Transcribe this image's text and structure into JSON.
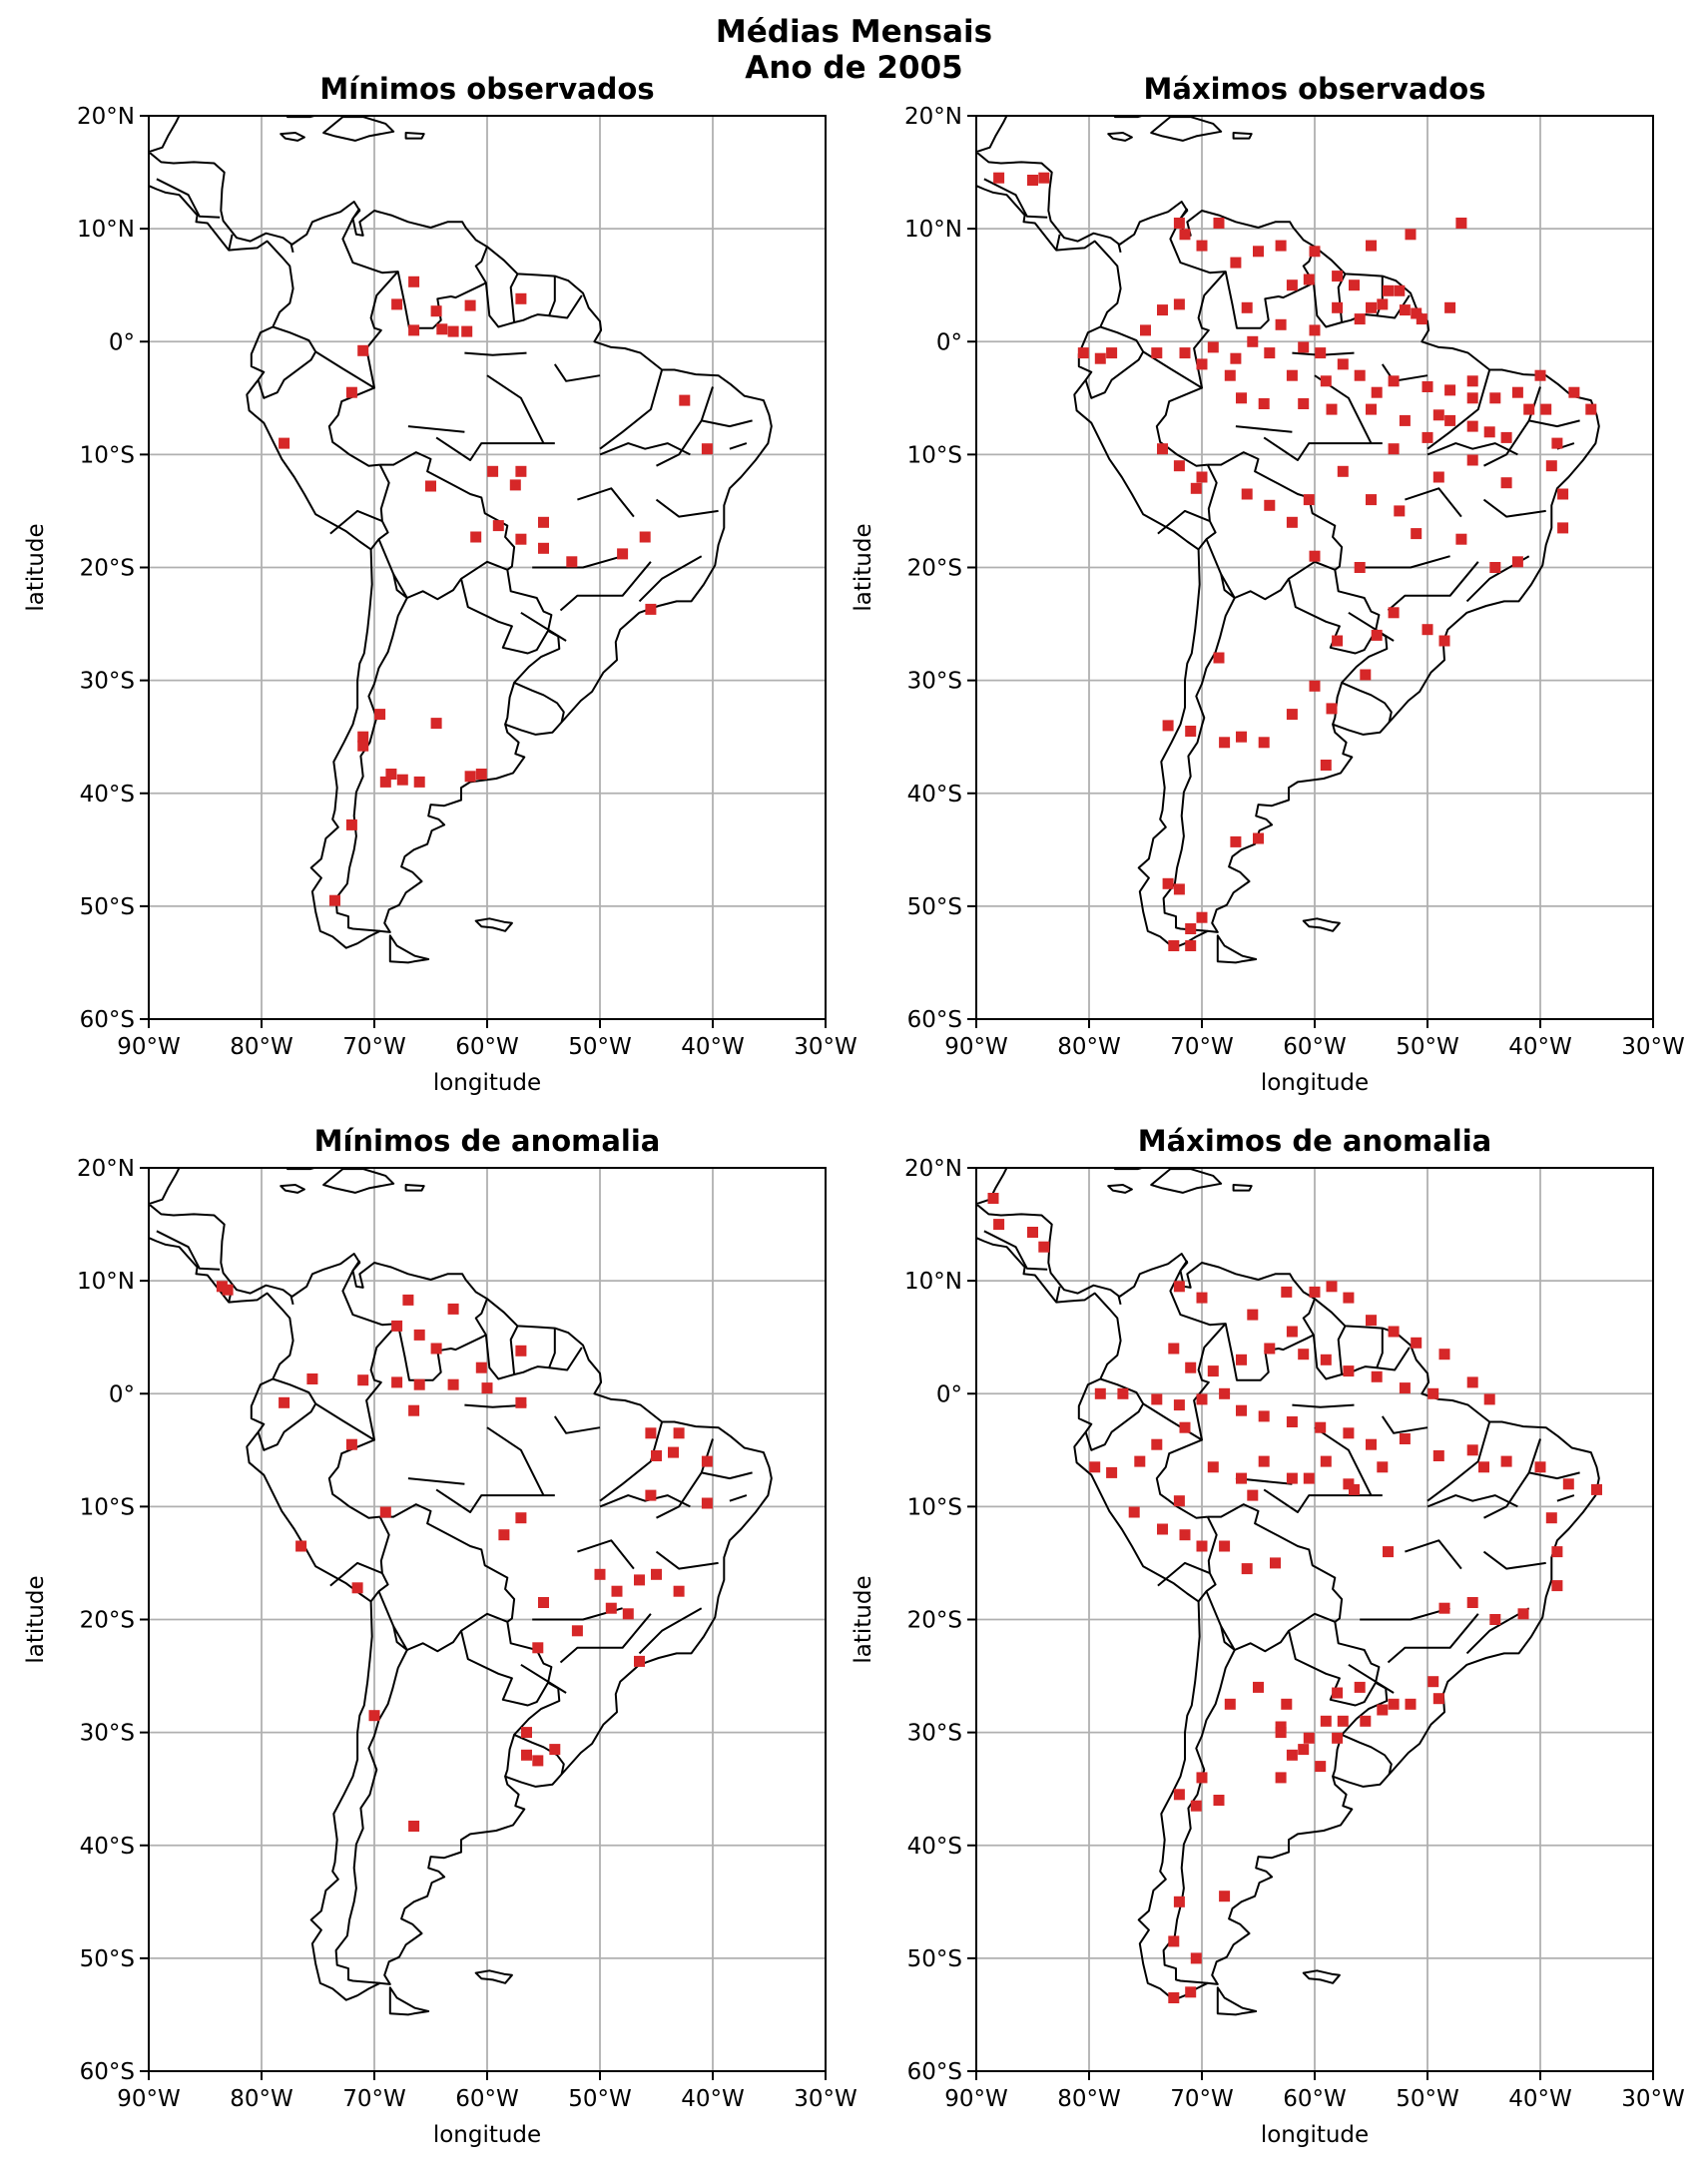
{
  "figure": {
    "title_line1": "Médias Mensais",
    "title_line2": "Ano de 2005"
  },
  "style": {
    "marker_color": "#d62728",
    "grid_color": "#b0b0b0",
    "coast_color": "#000000"
  },
  "axes_common": {
    "xlabel": "longitude",
    "ylabel": "latitude",
    "xlim": [
      -90,
      -30
    ],
    "ylim": [
      -60,
      20
    ],
    "xticks": [
      -90,
      -80,
      -70,
      -60,
      -50,
      -40,
      -30
    ],
    "yticks": [
      20,
      10,
      0,
      -10,
      -20,
      -30,
      -40,
      -50,
      -60
    ],
    "xtick_labels": [
      "90°W",
      "80°W",
      "70°W",
      "60°W",
      "50°W",
      "40°W",
      "30°W"
    ],
    "ytick_labels": [
      "20°N",
      "10°N",
      "0°",
      "10°S",
      "20°S",
      "30°S",
      "40°S",
      "50°S",
      "60°S"
    ],
    "grid": true
  },
  "chart_data": [
    {
      "type": "scatter",
      "title": "Mínimos observados",
      "points": [
        [
          -66.5,
          5.3
        ],
        [
          -68,
          3.3
        ],
        [
          -66.5,
          1
        ],
        [
          -64,
          1.1
        ],
        [
          -63,
          0.9
        ],
        [
          -61.8,
          0.9
        ],
        [
          -61.5,
          3.2
        ],
        [
          -57,
          3.8
        ],
        [
          -64.5,
          2.7
        ],
        [
          -71,
          -0.8
        ],
        [
          -72,
          -4.5
        ],
        [
          -78,
          -9
        ],
        [
          -42.5,
          -5.2
        ],
        [
          -57,
          -11.5
        ],
        [
          -57.5,
          -12.7
        ],
        [
          -59.5,
          -11.5
        ],
        [
          -65,
          -12.8
        ],
        [
          -55,
          -16
        ],
        [
          -61,
          -17.3
        ],
        [
          -59,
          -16.3
        ],
        [
          -57,
          -17.5
        ],
        [
          -55,
          -18.3
        ],
        [
          -52.5,
          -19.5
        ],
        [
          -48,
          -18.8
        ],
        [
          -46,
          -17.3
        ],
        [
          -45.5,
          -23.7
        ],
        [
          -40.5,
          -9.5
        ],
        [
          -69.5,
          -33
        ],
        [
          -71,
          -35
        ],
        [
          -71,
          -35.8
        ],
        [
          -64.5,
          -33.8
        ],
        [
          -68.5,
          -38.3
        ],
        [
          -67.5,
          -38.8
        ],
        [
          -69,
          -39
        ],
        [
          -66,
          -39
        ],
        [
          -60.5,
          -38.3
        ],
        [
          -72,
          -42.8
        ],
        [
          -73.5,
          -49.5
        ],
        [
          -61.5,
          -38.5
        ]
      ]
    },
    {
      "type": "scatter",
      "title": "Máximos observados",
      "points": [
        [
          -88,
          14.5
        ],
        [
          -85,
          14.3
        ],
        [
          -84,
          14.5
        ],
        [
          -72,
          10.5
        ],
        [
          -71.5,
          9.5
        ],
        [
          -70,
          8.5
        ],
        [
          -67,
          7
        ],
        [
          -63,
          8.5
        ],
        [
          -60,
          8
        ],
        [
          -55,
          8.5
        ],
        [
          -51.5,
          9.5
        ],
        [
          -47,
          10.5
        ],
        [
          -60.5,
          5.5
        ],
        [
          -58,
          5.8
        ],
        [
          -56.5,
          5
        ],
        [
          -55,
          3
        ],
        [
          -53.5,
          4.5
        ],
        [
          -52.5,
          4.5
        ],
        [
          -51,
          2.5
        ],
        [
          -50.5,
          2
        ],
        [
          -48,
          3
        ],
        [
          -73.5,
          2.8
        ],
        [
          -72,
          3.3
        ],
        [
          -75,
          1
        ],
        [
          -79,
          -1.5
        ],
        [
          -80.5,
          -1
        ],
        [
          -78,
          -1
        ],
        [
          -65.5,
          0
        ],
        [
          -63,
          1.5
        ],
        [
          -60,
          1
        ],
        [
          -58,
          3
        ],
        [
          -56,
          2
        ],
        [
          -54,
          3.3
        ],
        [
          -52,
          2.8
        ],
        [
          -61,
          -0.5
        ],
        [
          -64,
          -1
        ],
        [
          -67,
          -1.5
        ],
        [
          -70,
          -2
        ],
        [
          -71.5,
          -1
        ],
        [
          -74,
          -1
        ],
        [
          -62,
          -3
        ],
        [
          -59,
          -3.5
        ],
        [
          -56,
          -3
        ],
        [
          -53,
          -3.5
        ],
        [
          -50,
          -4
        ],
        [
          -48,
          -4.3
        ],
        [
          -46,
          -5
        ],
        [
          -44,
          -5
        ],
        [
          -42,
          -4.5
        ],
        [
          -40,
          -3
        ],
        [
          -39.5,
          -6
        ],
        [
          -37,
          -4.5
        ],
        [
          -66.5,
          -5
        ],
        [
          -64.5,
          -5.5
        ],
        [
          -61,
          -5.5
        ],
        [
          -58.5,
          -6
        ],
        [
          -55,
          -6
        ],
        [
          -52,
          -7
        ],
        [
          -49,
          -6.5
        ],
        [
          -46,
          -7.5
        ],
        [
          -43,
          -8.5
        ],
        [
          -73.5,
          -9.5
        ],
        [
          -72,
          -11
        ],
        [
          -70,
          -12
        ],
        [
          -70.5,
          -13
        ],
        [
          -66,
          -13.5
        ],
        [
          -64,
          -14.5
        ],
        [
          -60.5,
          -14
        ],
        [
          -57.5,
          -11.5
        ],
        [
          -55,
          -14
        ],
        [
          -52.5,
          -15
        ],
        [
          -49,
          -12
        ],
        [
          -46,
          -10.5
        ],
        [
          -43,
          -12.5
        ],
        [
          -39,
          -11
        ],
        [
          -38,
          -13.5
        ],
        [
          -62,
          -16
        ],
        [
          -60,
          -19
        ],
        [
          -56,
          -20
        ],
        [
          -51,
          -17
        ],
        [
          -47,
          -17.5
        ],
        [
          -44,
          -20
        ],
        [
          -42,
          -19.5
        ],
        [
          -38,
          -16.5
        ],
        [
          -58,
          -26.5
        ],
        [
          -54.5,
          -26
        ],
        [
          -53,
          -24
        ],
        [
          -50,
          -25.5
        ],
        [
          -48.5,
          -26.5
        ],
        [
          -73,
          -34
        ],
        [
          -71,
          -34.5
        ],
        [
          -68,
          -35.5
        ],
        [
          -66.5,
          -35
        ],
        [
          -64.5,
          -35.5
        ],
        [
          -62,
          -33
        ],
        [
          -59,
          -37.5
        ],
        [
          -67,
          -44.3
        ],
        [
          -65,
          -44
        ],
        [
          -73,
          -48
        ],
        [
          -72,
          -48.5
        ],
        [
          -70,
          -51
        ],
        [
          -71,
          -52
        ],
        [
          -72.5,
          -53.5
        ],
        [
          -71,
          -53.5
        ],
        [
          -68.5,
          -28
        ],
        [
          -58.5,
          -32.5
        ],
        [
          -55.5,
          -29.5
        ],
        [
          -60,
          -30.5
        ],
        [
          -53,
          -9.5
        ],
        [
          -48,
          -7
        ],
        [
          -50,
          -8.5
        ],
        [
          -46,
          -3.5
        ],
        [
          -44.5,
          -8
        ],
        [
          -41,
          -6
        ],
        [
          -38.5,
          -9
        ],
        [
          -35.5,
          -6
        ],
        [
          -54.5,
          -4.5
        ],
        [
          -57.5,
          -2
        ],
        [
          -59.5,
          -1
        ],
        [
          -67.5,
          -3
        ],
        [
          -69,
          -0.5
        ],
        [
          -66,
          3
        ],
        [
          -62,
          5
        ],
        [
          -65,
          8
        ],
        [
          -68.5,
          10.5
        ]
      ]
    },
    {
      "type": "scatter",
      "title": "Mínimos de anomalia",
      "points": [
        [
          -83.5,
          9.5
        ],
        [
          -83,
          9.2
        ],
        [
          -67,
          8.3
        ],
        [
          -63,
          7.5
        ],
        [
          -68,
          6
        ],
        [
          -66,
          5.2
        ],
        [
          -64.5,
          4
        ],
        [
          -57,
          3.8
        ],
        [
          -71,
          1.2
        ],
        [
          -68,
          1
        ],
        [
          -66,
          0.8
        ],
        [
          -63,
          0.8
        ],
        [
          -60.5,
          2.3
        ],
        [
          -78,
          -0.8
        ],
        [
          -75.5,
          1.3
        ],
        [
          -72,
          -4.5
        ],
        [
          -66.5,
          -1.5
        ],
        [
          -60,
          0.5
        ],
        [
          -57,
          -0.8
        ],
        [
          -45.5,
          -3.5
        ],
        [
          -43,
          -3.5
        ],
        [
          -45,
          -5.5
        ],
        [
          -43.5,
          -5.2
        ],
        [
          -40.5,
          -6
        ],
        [
          -40.5,
          -9.7
        ],
        [
          -45.5,
          -9
        ],
        [
          -57,
          -11
        ],
        [
          -58.5,
          -12.5
        ],
        [
          -69,
          -10.5
        ],
        [
          -76.5,
          -13.5
        ],
        [
          -71.5,
          -17.2
        ],
        [
          -50,
          -16
        ],
        [
          -48.5,
          -17.5
        ],
        [
          -46.5,
          -16.5
        ],
        [
          -45,
          -16
        ],
        [
          -49,
          -19
        ],
        [
          -47.5,
          -19.5
        ],
        [
          -43,
          -17.5
        ],
        [
          -46.5,
          -23.7
        ],
        [
          -55.5,
          -22.5
        ],
        [
          -52,
          -21
        ],
        [
          -55,
          -18.5
        ],
        [
          -56.5,
          -30
        ],
        [
          -56.5,
          -32
        ],
        [
          -55.5,
          -32.5
        ],
        [
          -54,
          -31.5
        ],
        [
          -70,
          -28.5
        ],
        [
          -66.5,
          -38.3
        ]
      ]
    },
    {
      "type": "scatter",
      "title": "Máximos de anomalia",
      "points": [
        [
          -88.5,
          17.3
        ],
        [
          -88,
          15
        ],
        [
          -85,
          14.3
        ],
        [
          -84,
          13
        ],
        [
          -72,
          9.5
        ],
        [
          -70,
          8.5
        ],
        [
          -65.5,
          7
        ],
        [
          -62.5,
          9
        ],
        [
          -60,
          9
        ],
        [
          -58.5,
          9.5
        ],
        [
          -57,
          8.5
        ],
        [
          -55,
          6.5
        ],
        [
          -53,
          5.5
        ],
        [
          -51,
          4.5
        ],
        [
          -48.5,
          3.5
        ],
        [
          -46,
          1
        ],
        [
          -44.5,
          -0.5
        ],
        [
          -72.5,
          4
        ],
        [
          -71,
          2.3
        ],
        [
          -69,
          2
        ],
        [
          -66.5,
          3
        ],
        [
          -64,
          4
        ],
        [
          -62,
          5.5
        ],
        [
          -61,
          3.5
        ],
        [
          -59,
          3
        ],
        [
          -57,
          2
        ],
        [
          -54.5,
          1.5
        ],
        [
          -52,
          0.5
        ],
        [
          -49.5,
          0
        ],
        [
          -79,
          0
        ],
        [
          -77,
          0
        ],
        [
          -74,
          -0.5
        ],
        [
          -72,
          -1
        ],
        [
          -70,
          -0.5
        ],
        [
          -68,
          0
        ],
        [
          -66.5,
          -1.5
        ],
        [
          -64.5,
          -2
        ],
        [
          -62,
          -2.5
        ],
        [
          -59.5,
          -3
        ],
        [
          -57,
          -3.5
        ],
        [
          -55,
          -4.5
        ],
        [
          -52,
          -4
        ],
        [
          -49,
          -5.5
        ],
        [
          -46,
          -5
        ],
        [
          -45,
          -6.5
        ],
        [
          -43,
          -6
        ],
        [
          -40,
          -6.5
        ],
        [
          -37.5,
          -8
        ],
        [
          -35,
          -8.5
        ],
        [
          -79.5,
          -6.5
        ],
        [
          -78,
          -7
        ],
        [
          -75.5,
          -6
        ],
        [
          -74,
          -4.5
        ],
        [
          -71.5,
          -3
        ],
        [
          -69,
          -6.5
        ],
        [
          -66.5,
          -7.5
        ],
        [
          -64.5,
          -6
        ],
        [
          -62,
          -7.5
        ],
        [
          -59,
          -6
        ],
        [
          -57,
          -8
        ],
        [
          -54,
          -6.5
        ],
        [
          -73.5,
          -12
        ],
        [
          -71.5,
          -12.5
        ],
        [
          -70,
          -13.5
        ],
        [
          -68,
          -13.5
        ],
        [
          -66,
          -15.5
        ],
        [
          -63.5,
          -15
        ],
        [
          -76,
          -10.5
        ],
        [
          -72,
          -9.5
        ],
        [
          -65.5,
          -9
        ],
        [
          -60.5,
          -7.5
        ],
        [
          -56.5,
          -8.5
        ],
        [
          -53.5,
          -14
        ],
        [
          -48.5,
          -19
        ],
        [
          -46,
          -18.5
        ],
        [
          -44,
          -20
        ],
        [
          -41.5,
          -19.5
        ],
        [
          -38.5,
          -14
        ],
        [
          -38.5,
          -17
        ],
        [
          -39,
          -11
        ],
        [
          -49.5,
          -25.5
        ],
        [
          -49,
          -27
        ],
        [
          -51.5,
          -27.5
        ],
        [
          -53,
          -27.5
        ],
        [
          -54,
          -28
        ],
        [
          -55.5,
          -29
        ],
        [
          -57.5,
          -29
        ],
        [
          -59,
          -29
        ],
        [
          -60.5,
          -30.5
        ],
        [
          -63,
          -29.5
        ],
        [
          -63,
          -30
        ],
        [
          -58,
          -30.5
        ],
        [
          -58,
          -26.5
        ],
        [
          -56,
          -26
        ],
        [
          -59.5,
          -33
        ],
        [
          -62,
          -32
        ],
        [
          -70,
          -34
        ],
        [
          -72,
          -35.5
        ],
        [
          -70.5,
          -36.5
        ],
        [
          -68.5,
          -36
        ],
        [
          -72,
          -45
        ],
        [
          -68,
          -44.5
        ],
        [
          -72.5,
          -48.5
        ],
        [
          -70.5,
          -50
        ],
        [
          -72.5,
          -53.5
        ],
        [
          -71,
          -53
        ],
        [
          -61,
          -31.5
        ],
        [
          -63,
          -34
        ],
        [
          -67.5,
          -27.5
        ],
        [
          -65,
          -26
        ],
        [
          -62.5,
          -27.5
        ]
      ]
    }
  ]
}
